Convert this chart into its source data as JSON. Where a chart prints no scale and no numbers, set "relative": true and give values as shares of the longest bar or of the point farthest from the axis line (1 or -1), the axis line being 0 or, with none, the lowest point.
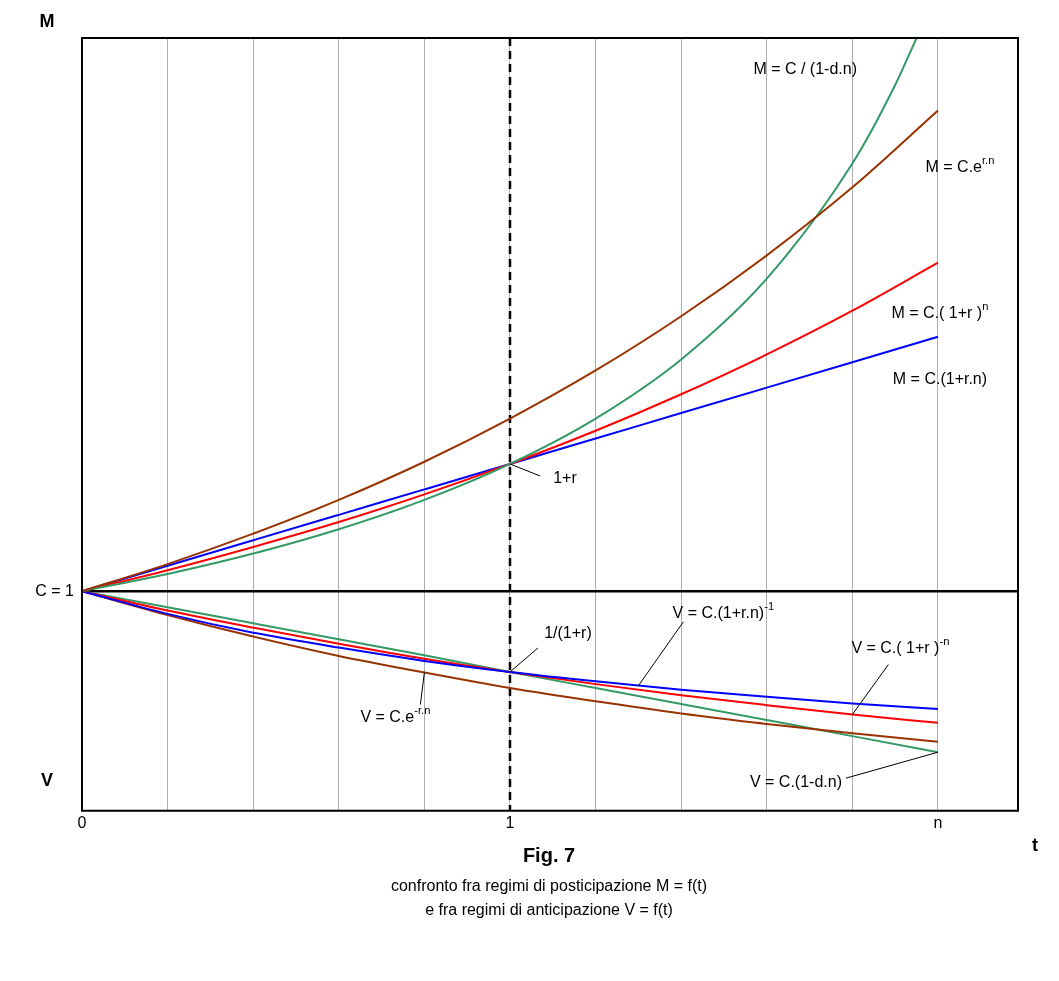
{
  "chart_data": {
    "type": "line",
    "title": "Fig. 7",
    "subtitle": "confronto fra regimi di posticipazione M = f(t)\ne fra regimi di anticipazione V = f(t)",
    "xlabel": "t",
    "ylabel": "M",
    "relative": true,
    "grid": "x",
    "legend": false,
    "line_style": "solid",
    "x": [
      0,
      0.2,
      0.4,
      0.6,
      0.8,
      1,
      1.2,
      1.4,
      1.6,
      1.8,
      2
    ],
    "xlim": [
      0,
      2.187
    ],
    "xticks": [
      {
        "value": 0,
        "label": "0"
      },
      {
        "value": 0.2,
        "label": null
      },
      {
        "value": 0.4,
        "label": null
      },
      {
        "value": 0.6,
        "label": null
      },
      {
        "value": 0.8,
        "label": null
      },
      {
        "value": 1,
        "label": "1"
      },
      {
        "value": 1.2,
        "label": null
      },
      {
        "value": 1.4,
        "label": null
      },
      {
        "value": 1.6,
        "label": null
      },
      {
        "value": 1.8,
        "label": null
      },
      {
        "value": 2,
        "label": "n"
      }
    ],
    "series": [
      {
        "color": "#993300",
        "values": [
          0,
          0.049,
          0.104,
          0.165,
          0.234,
          0.312,
          0.399,
          0.497,
          0.607,
          0.73,
          0.869
        ]
      },
      {
        "color": "#339966",
        "x": [
          0,
          0.2,
          0.4,
          0.6,
          0.8,
          1,
          1.2,
          1.4,
          1.6,
          1.8,
          1.9,
          1.95
        ],
        "values": [
          0,
          0.031,
          0.068,
          0.112,
          0.165,
          0.23,
          0.312,
          0.419,
          0.565,
          0.773,
          0.915,
          1
        ]
      },
      {
        "color": "#ff0000",
        "values": [
          0,
          0.038,
          0.08,
          0.125,
          0.175,
          0.23,
          0.29,
          0.356,
          0.428,
          0.507,
          0.594
        ]
      },
      {
        "color": "#0000ff",
        "values": [
          0,
          0.046,
          0.092,
          0.138,
          0.184,
          0.23,
          0.276,
          0.322,
          0.368,
          0.414,
          0.46
        ]
      },
      {
        "color": "#0000ff",
        "values": [
          0,
          -0.041,
          -0.075,
          -0.102,
          -0.126,
          -0.146,
          -0.163,
          -0.178,
          -0.191,
          -0.203,
          -0.213
        ]
      },
      {
        "color": "#ff0000",
        "values": [
          0,
          -0.035,
          -0.066,
          -0.095,
          -0.122,
          -0.146,
          -0.168,
          -0.188,
          -0.206,
          -0.223,
          -0.238
        ]
      },
      {
        "color": "#993300",
        "values": [
          0,
          -0.043,
          -0.082,
          -0.117,
          -0.147,
          -0.175,
          -0.199,
          -0.221,
          -0.24,
          -0.257,
          -0.272
        ]
      },
      {
        "color": "#339966",
        "values": [
          0,
          -0.029,
          -0.058,
          -0.087,
          -0.116,
          -0.146,
          -0.175,
          -0.204,
          -0.233,
          -0.262,
          -0.291
        ]
      }
    ],
    "ref_lines": [
      {
        "axis": "y",
        "value": 0,
        "color": "#000000"
      },
      {
        "axis": "x",
        "value": 1,
        "line_style": "dashed",
        "color": "#000000"
      }
    ],
    "annotations": [
      "V",
      "C = 1",
      {
        "text": "M = C / (1-d.n)",
        "x": 1.9,
        "y": 0.915
      },
      {
        "text": "M = C.e$^{r.n}$",
        "x": 2,
        "y": 0.869
      },
      {
        "text": "M = C.( 1+r )$^{n}$",
        "x": 2,
        "y": 0.594
      },
      {
        "text": "M = C.(1+r.n)",
        "x": 2,
        "y": 0.46
      },
      {
        "text": "1+r",
        "x": 1,
        "y": 0.23
      },
      {
        "text": "1/(1+r)",
        "x": 1,
        "y": -0.146
      },
      {
        "text": "V = C.(1+r.n)$^{-1}$",
        "x": 1.3,
        "y": -0.171
      },
      {
        "text": "V = C.( 1+r )$^{-n}$",
        "x": 1.8,
        "y": -0.223
      },
      {
        "text": "V = C.e$^{-r.n}$",
        "x": 0.8,
        "y": -0.147
      },
      {
        "text": "V = C.(1-d.n)",
        "x": 2,
        "y": -0.291
      }
    ]
  }
}
